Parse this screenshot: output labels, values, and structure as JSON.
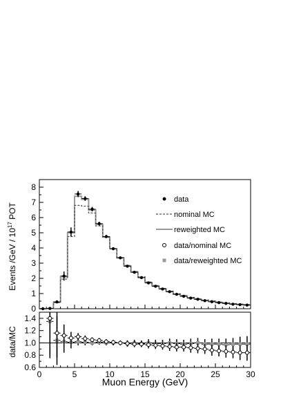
{
  "chart_data": [
    {
      "type": "line",
      "panel": "main",
      "ylabel": "Events /GeV / 10",
      "ylabel_superscript": "17",
      "ylabel_suffix": " POT",
      "xlim": [
        0,
        30
      ],
      "ylim": [
        0,
        8.5
      ],
      "yticks": [
        "0",
        "1",
        "2",
        "3",
        "4",
        "5",
        "6",
        "7",
        "8"
      ],
      "legend_position": "right",
      "bin_edges": [
        0,
        1,
        2,
        3,
        4,
        5,
        6,
        7,
        8,
        9,
        10,
        11,
        12,
        13,
        14,
        15,
        16,
        17,
        18,
        19,
        20,
        21,
        22,
        23,
        24,
        25,
        26,
        27,
        28,
        29,
        30
      ],
      "series": [
        {
          "name": "data",
          "style": "points",
          "x": [
            0.5,
            1.5,
            2.5,
            3.5,
            4.5,
            5.5,
            6.5,
            7.5,
            8.5,
            9.5,
            10.5,
            11.5,
            12.5,
            13.5,
            14.5,
            15.5,
            16.5,
            17.5,
            18.5,
            19.5,
            20.5,
            21.5,
            22.5,
            23.5,
            24.5,
            25.5,
            26.5,
            27.5,
            28.5,
            29.5
          ],
          "y": [
            0.0,
            0.02,
            0.45,
            2.15,
            5.05,
            7.55,
            7.25,
            6.55,
            5.6,
            4.75,
            3.95,
            3.35,
            2.8,
            2.4,
            2.05,
            1.7,
            1.48,
            1.3,
            1.12,
            0.95,
            0.82,
            0.7,
            0.62,
            0.53,
            0.46,
            0.4,
            0.35,
            0.3,
            0.27,
            0.24
          ],
          "yerr": [
            0,
            0.02,
            0.1,
            0.3,
            0.3,
            0.2,
            0.15,
            0.15,
            0.12,
            0.1,
            0.1,
            0.08,
            0.08,
            0.07,
            0.07,
            0.06,
            0.06,
            0.05,
            0.05,
            0.05,
            0.04,
            0.04,
            0.04,
            0.04,
            0.04,
            0.03,
            0.03,
            0.03,
            0.03,
            0.03
          ]
        },
        {
          "name": "nominal MC",
          "style": "dashed-step",
          "color": "#555555",
          "y": [
            0.0,
            0.01,
            0.4,
            1.95,
            4.75,
            6.8,
            6.75,
            6.3,
            5.45,
            4.7,
            3.95,
            3.35,
            2.85,
            2.45,
            2.1,
            1.76,
            1.53,
            1.34,
            1.16,
            0.99,
            0.87,
            0.75,
            0.66,
            0.58,
            0.51,
            0.44,
            0.39,
            0.34,
            0.3,
            0.27
          ]
        },
        {
          "name": "reweighted MC",
          "style": "solid-step",
          "color": "#999999",
          "y": [
            0.0,
            0.01,
            0.43,
            2.1,
            5.0,
            7.4,
            7.2,
            6.5,
            5.55,
            4.72,
            3.95,
            3.35,
            2.82,
            2.42,
            2.06,
            1.72,
            1.5,
            1.31,
            1.13,
            0.96,
            0.84,
            0.72,
            0.63,
            0.55,
            0.48,
            0.42,
            0.37,
            0.32,
            0.28,
            0.25
          ]
        }
      ]
    },
    {
      "type": "scatter",
      "panel": "ratio",
      "xlabel": "Muon Energy (GeV)",
      "ylabel": "data/MC",
      "xlim": [
        0,
        30
      ],
      "ylim": [
        0.6,
        1.5
      ],
      "xticks": [
        "0",
        "5",
        "10",
        "15",
        "20",
        "25",
        "30"
      ],
      "yticks": [
        "0.6",
        "0.8",
        "1.0",
        "1.2",
        "1.4"
      ],
      "reference_line": 1.0,
      "series": [
        {
          "name": "data/nominal MC",
          "marker": "open-circle",
          "x": [
            1.5,
            2.5,
            3.5,
            4.5,
            5.5,
            6.5,
            7.5,
            8.5,
            9.5,
            10.5,
            11.5,
            12.5,
            13.5,
            14.5,
            15.5,
            16.5,
            17.5,
            18.5,
            19.5,
            20.5,
            21.5,
            22.5,
            23.5,
            24.5,
            25.5,
            26.5,
            27.5,
            28.5,
            29.5
          ],
          "y": [
            1.4,
            1.16,
            1.12,
            1.08,
            1.1,
            1.07,
            1.05,
            1.04,
            1.02,
            1.01,
            1.0,
            0.99,
            0.98,
            0.98,
            0.97,
            0.96,
            0.95,
            0.94,
            0.93,
            0.93,
            0.92,
            0.91,
            0.9,
            0.88,
            0.87,
            0.86,
            0.85,
            0.84,
            0.84
          ],
          "yerr": [
            0.6,
            0.4,
            0.18,
            0.1,
            0.06,
            0.05,
            0.04,
            0.04,
            0.04,
            0.04,
            0.04,
            0.05,
            0.05,
            0.05,
            0.06,
            0.06,
            0.06,
            0.07,
            0.07,
            0.07,
            0.08,
            0.08,
            0.08,
            0.09,
            0.09,
            0.1,
            0.1,
            0.12,
            0.13
          ]
        },
        {
          "name": "data/reweighted MC",
          "marker": "filled-square",
          "color": "#999999",
          "x": [
            1.5,
            2.5,
            3.5,
            4.5,
            5.5,
            6.5,
            7.5,
            8.5,
            9.5,
            10.5,
            11.5,
            12.5,
            13.5,
            14.5,
            15.5,
            16.5,
            17.5,
            18.5,
            19.5,
            20.5,
            21.5,
            22.5,
            23.5,
            24.5,
            25.5,
            26.5,
            27.5,
            28.5,
            29.5
          ],
          "y": [
            1.35,
            1.04,
            1.02,
            1.01,
            1.02,
            1.01,
            1.0,
            1.01,
            1.0,
            1.0,
            1.0,
            0.99,
            1.0,
            0.99,
            1.0,
            0.99,
            0.99,
            1.0,
            0.99,
            0.98,
            0.99,
            1.0,
            0.98,
            0.98,
            0.98,
            0.97,
            0.98,
            0.98,
            0.98
          ],
          "yerr": [
            0.6,
            0.4,
            0.18,
            0.1,
            0.06,
            0.05,
            0.04,
            0.04,
            0.04,
            0.04,
            0.04,
            0.05,
            0.05,
            0.05,
            0.06,
            0.06,
            0.06,
            0.07,
            0.07,
            0.07,
            0.08,
            0.08,
            0.08,
            0.09,
            0.09,
            0.1,
            0.1,
            0.12,
            0.13
          ]
        }
      ]
    }
  ]
}
